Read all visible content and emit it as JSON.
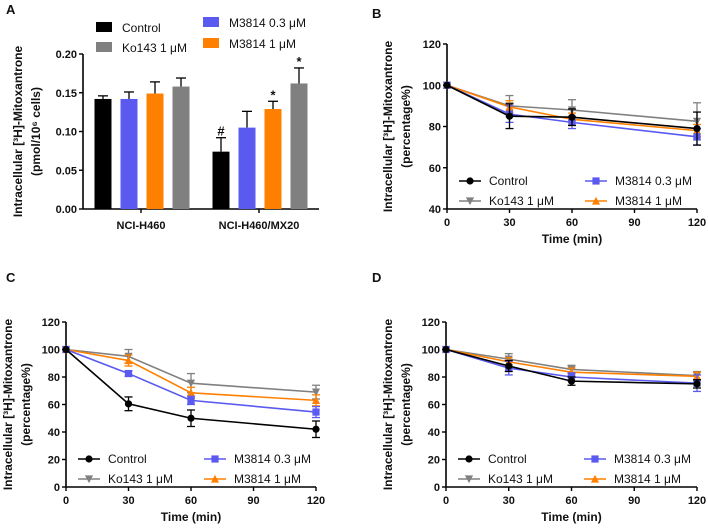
{
  "chart_data": [
    {
      "panel": "A",
      "type": "bar",
      "ylabel_line1": "Intracellular [³H]-Mitoxantrone",
      "ylabel_line2": "(pmol/10⁶ cells)",
      "xlabel": "",
      "ylim": [
        0,
        0.2
      ],
      "yticks": [
        "0.00",
        "0.05",
        "0.10",
        "0.15",
        "0.20"
      ],
      "categories": [
        "NCI-H460",
        "NCI-H460/MX20"
      ],
      "legend_position": "top",
      "series": [
        {
          "name": "Control",
          "color": "#000000",
          "values": [
            0.142,
            0.074
          ],
          "errors": [
            0.004,
            0.018
          ],
          "annotations": [
            "",
            "#"
          ]
        },
        {
          "name": "M3814 0.3 μM",
          "color": "#5a5af0",
          "values": [
            0.142,
            0.105
          ],
          "errors": [
            0.009,
            0.021
          ],
          "annotations": [
            "",
            ""
          ]
        },
        {
          "name": "M3814 1 μM",
          "color": "#ff8000",
          "values": [
            0.149,
            0.129
          ],
          "errors": [
            0.015,
            0.01
          ],
          "annotations": [
            "",
            "*"
          ]
        },
        {
          "name": "Ko143 1 μM",
          "color": "#808080",
          "values": [
            0.158,
            0.162
          ],
          "errors": [
            0.011,
            0.02
          ],
          "annotations": [
            "",
            "*"
          ]
        }
      ]
    },
    {
      "panel": "B",
      "type": "line",
      "ylabel_line1": "Intracellular [³H]-Mitoxantrone",
      "ylabel_line2": "(percentage%)",
      "xlabel": "Time (min)",
      "x": [
        0,
        30,
        60,
        120
      ],
      "xlim": [
        0,
        120
      ],
      "xticks": [
        "0",
        "30",
        "60",
        "90",
        "120"
      ],
      "ylim": [
        40,
        120
      ],
      "yticks": [
        "40",
        "60",
        "80",
        "100",
        "120"
      ],
      "legend_position": "bottom",
      "series": [
        {
          "name": "Control",
          "color": "#000000",
          "marker": "circle",
          "values": [
            100,
            85,
            84.5,
            79
          ],
          "errors": [
            0,
            6,
            4,
            8
          ]
        },
        {
          "name": "Ko143 1 μM",
          "color": "#808080",
          "marker": "triangle-down",
          "values": [
            100,
            90,
            88,
            82.5
          ],
          "errors": [
            0,
            5,
            5,
            9
          ]
        },
        {
          "name": "M3814 0.3 μM",
          "color": "#5a5af0",
          "marker": "square",
          "values": [
            100,
            86,
            82,
            75
          ],
          "errors": [
            0,
            4,
            3,
            4
          ]
        },
        {
          "name": "M3814 1 μM",
          "color": "#ff8000",
          "marker": "triangle-up",
          "values": [
            100,
            89.5,
            83.5,
            78
          ],
          "errors": [
            0,
            3,
            3,
            3
          ]
        }
      ]
    },
    {
      "panel": "C",
      "type": "line",
      "ylabel_line1": "Intracellular [³H]-Mitoxantrone",
      "ylabel_line2": "(percentage%)",
      "xlabel": "Time (min)",
      "x": [
        0,
        30,
        60,
        120
      ],
      "xlim": [
        0,
        120
      ],
      "xticks": [
        "0",
        "30",
        "60",
        "90",
        "120"
      ],
      "ylim": [
        0,
        120
      ],
      "yticks": [
        "0",
        "20",
        "40",
        "60",
        "80",
        "100",
        "120"
      ],
      "legend_position": "bottom",
      "series": [
        {
          "name": "Control",
          "color": "#000000",
          "marker": "circle",
          "values": [
            100,
            60.5,
            50,
            42
          ],
          "errors": [
            0,
            5,
            6,
            6
          ]
        },
        {
          "name": "Ko143 1 μM",
          "color": "#808080",
          "marker": "triangle-down",
          "values": [
            100,
            95,
            75.5,
            69
          ],
          "errors": [
            0,
            5,
            7,
            5
          ]
        },
        {
          "name": "M3814 0.3 μM",
          "color": "#5a5af0",
          "marker": "square",
          "values": [
            100,
            82.5,
            63,
            54.5
          ],
          "errors": [
            0,
            2,
            3,
            4
          ]
        },
        {
          "name": "M3814 1 μM",
          "color": "#ff8000",
          "marker": "triangle-up",
          "values": [
            100,
            92,
            68.5,
            63
          ],
          "errors": [
            0,
            4,
            4,
            4
          ]
        }
      ]
    },
    {
      "panel": "D",
      "type": "line",
      "ylabel_line1": "Intracellular [³H]-Mitoxantrone",
      "ylabel_line2": "(percentage%)",
      "xlabel": "Time (min)",
      "x": [
        0,
        30,
        60,
        120
      ],
      "xlim": [
        0,
        120
      ],
      "xticks": [
        "0",
        "30",
        "60",
        "90",
        "120"
      ],
      "ylim": [
        0,
        120
      ],
      "yticks": [
        "0",
        "20",
        "40",
        "60",
        "80",
        "100",
        "120"
      ],
      "legend_position": "bottom",
      "series": [
        {
          "name": "Control",
          "color": "#000000",
          "marker": "circle",
          "values": [
            100,
            88,
            77,
            75
          ],
          "errors": [
            0,
            4,
            3,
            3
          ]
        },
        {
          "name": "Ko143 1 μM",
          "color": "#808080",
          "marker": "triangle-down",
          "values": [
            100,
            93,
            85.5,
            81
          ],
          "errors": [
            0,
            4,
            3,
            3
          ]
        },
        {
          "name": "M3814 0.3 μM",
          "color": "#5a5af0",
          "marker": "square",
          "values": [
            100,
            86.5,
            80,
            75.5
          ],
          "errors": [
            0,
            5,
            3,
            6
          ]
        },
        {
          "name": "M3814 1 μM",
          "color": "#ff8000",
          "marker": "triangle-up",
          "values": [
            100,
            91,
            83.5,
            80.5
          ],
          "errors": [
            0,
            3,
            3,
            3
          ]
        }
      ]
    }
  ]
}
